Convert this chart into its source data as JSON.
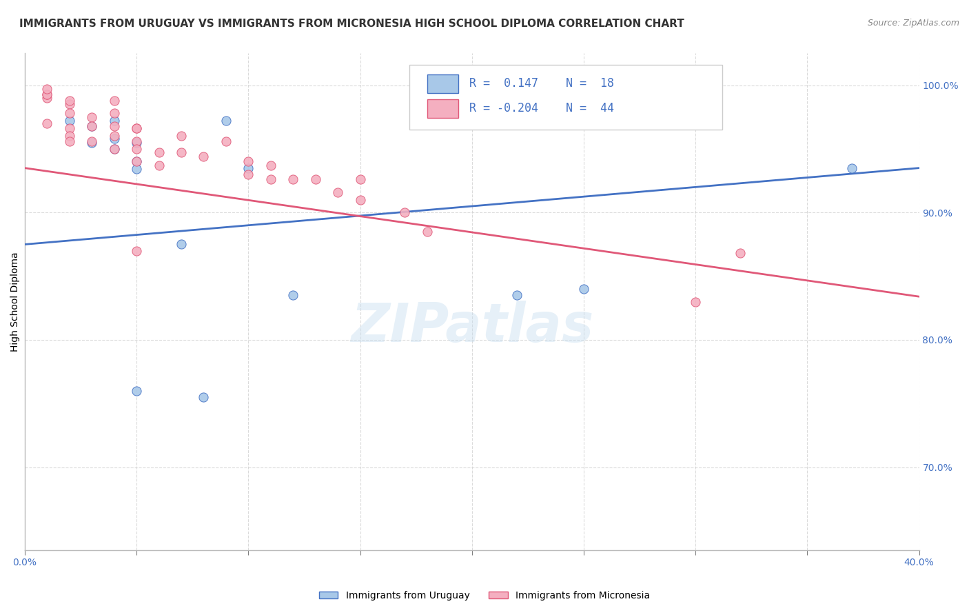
{
  "title": "IMMIGRANTS FROM URUGUAY VS IMMIGRANTS FROM MICRONESIA HIGH SCHOOL DIPLOMA CORRELATION CHART",
  "source": "Source: ZipAtlas.com",
  "ylabel": "High School Diploma",
  "xlabel": "",
  "xlim": [
    0.0,
    0.4
  ],
  "ylim": [
    0.635,
    1.025
  ],
  "xticks": [
    0.0,
    0.05,
    0.1,
    0.15,
    0.2,
    0.25,
    0.3,
    0.35,
    0.4
  ],
  "yticks": [
    0.7,
    0.8,
    0.9,
    1.0
  ],
  "ytick_labels": [
    "70.0%",
    "80.0%",
    "90.0%",
    "100.0%"
  ],
  "xtick_labels_left": [
    "0.0%"
  ],
  "xtick_labels_right": [
    "40.0%"
  ],
  "r_uruguay": 0.147,
  "n_uruguay": 18,
  "r_micronesia": -0.204,
  "n_micronesia": 44,
  "color_uruguay": "#a8c8e8",
  "color_micronesia": "#f4afc0",
  "line_color_uruguay": "#4472c4",
  "line_color_micronesia": "#e05878",
  "watermark": "ZIPatlas",
  "title_fontsize": 11,
  "axis_label_fontsize": 10,
  "tick_fontsize": 10,
  "legend_fontsize": 12,
  "uruguay_x": [
    0.02,
    0.03,
    0.03,
    0.04,
    0.04,
    0.04,
    0.05,
    0.05,
    0.05,
    0.07,
    0.08,
    0.09,
    0.1,
    0.12,
    0.22,
    0.25,
    0.37,
    0.05
  ],
  "uruguay_y": [
    0.972,
    0.955,
    0.968,
    0.95,
    0.958,
    0.972,
    0.94,
    0.955,
    0.934,
    0.875,
    0.755,
    0.972,
    0.935,
    0.835,
    0.835,
    0.84,
    0.935,
    0.76
  ],
  "micronesia_x": [
    0.01,
    0.01,
    0.01,
    0.01,
    0.01,
    0.02,
    0.02,
    0.02,
    0.02,
    0.02,
    0.02,
    0.03,
    0.03,
    0.03,
    0.04,
    0.04,
    0.04,
    0.04,
    0.04,
    0.05,
    0.05,
    0.05,
    0.05,
    0.05,
    0.06,
    0.06,
    0.07,
    0.07,
    0.08,
    0.09,
    0.1,
    0.1,
    0.11,
    0.11,
    0.12,
    0.13,
    0.14,
    0.15,
    0.15,
    0.17,
    0.18,
    0.3,
    0.32,
    0.05
  ],
  "micronesia_y": [
    0.99,
    0.993,
    0.993,
    0.997,
    0.97,
    0.985,
    0.988,
    0.978,
    0.966,
    0.96,
    0.956,
    0.975,
    0.968,
    0.956,
    0.988,
    0.978,
    0.968,
    0.96,
    0.95,
    0.966,
    0.966,
    0.956,
    0.95,
    0.94,
    0.947,
    0.937,
    0.96,
    0.947,
    0.944,
    0.956,
    0.94,
    0.93,
    0.937,
    0.926,
    0.926,
    0.926,
    0.916,
    0.926,
    0.91,
    0.9,
    0.885,
    0.83,
    0.868,
    0.87
  ],
  "line_uru_x0": 0.0,
  "line_uru_x1": 0.4,
  "line_uru_y0": 0.875,
  "line_uru_y1": 0.935,
  "line_mic_x0": 0.0,
  "line_mic_x1": 0.4,
  "line_mic_y0": 0.935,
  "line_mic_y1": 0.834
}
